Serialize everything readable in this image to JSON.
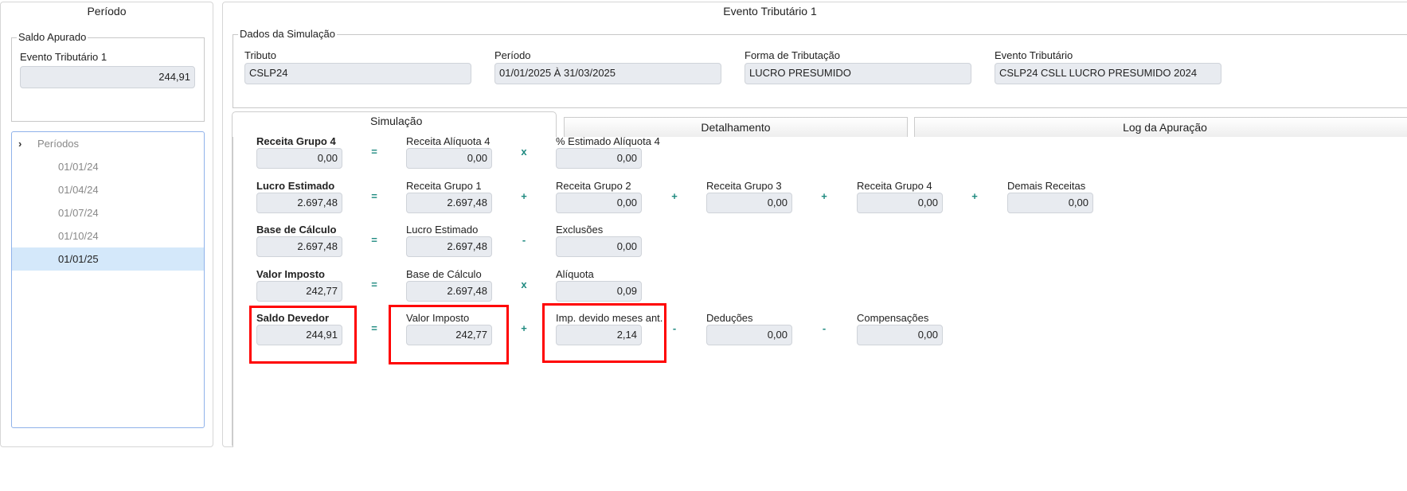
{
  "left": {
    "title": "Período",
    "saldo_legend": "Saldo Apurado",
    "evento_label": "Evento Tributário 1",
    "evento_value": "244,91",
    "tree": {
      "root": "Períodos",
      "items": [
        "01/01/24",
        "01/04/24",
        "01/07/24",
        "01/10/24",
        "01/01/25"
      ],
      "selected": 4
    }
  },
  "right": {
    "title": "Evento Tributário 1",
    "dados_legend": "Dados da Simulação",
    "fields": [
      {
        "label": "Tributo",
        "value": "CSLP24"
      },
      {
        "label": "Período",
        "value": "01/01/2025 À 31/03/2025"
      },
      {
        "label": "Forma de Tributação",
        "value": "LUCRO PRESUMIDO"
      },
      {
        "label": "Evento Tributário",
        "value": "CSLP24 CSLL LUCRO PRESUMIDO 2024"
      }
    ],
    "tabs": [
      {
        "label": "Simulação",
        "active": true
      },
      {
        "label": "Detalhamento"
      },
      {
        "label": "Log da Apuração"
      }
    ]
  },
  "simulation": {
    "rows": [
      {
        "items": [
          {
            "label": "Receita Grupo 4",
            "value": "0,00"
          },
          {
            "label": "Receita Alíquota 4",
            "value": "0,00"
          },
          {
            "label": "% Estimado Alíquota 4",
            "value": "0,00"
          }
        ],
        "ops": [
          "=",
          "x"
        ]
      },
      {
        "items": [
          {
            "label": "Lucro Estimado",
            "value": "2.697,48"
          },
          {
            "label": "Receita Grupo 1",
            "value": "2.697,48"
          },
          {
            "label": "Receita Grupo 2",
            "value": "0,00"
          },
          {
            "label": "Receita Grupo 3",
            "value": "0,00"
          },
          {
            "label": "Receita Grupo 4",
            "value": "0,00"
          },
          {
            "label": "Demais Receitas",
            "value": "0,00"
          }
        ],
        "ops": [
          "=",
          "+",
          "+",
          "+",
          "+"
        ]
      },
      {
        "items": [
          {
            "label": "Base de Cálculo",
            "value": "2.697,48"
          },
          {
            "label": "Lucro Estimado",
            "value": "2.697,48"
          },
          {
            "label": "Exclusões",
            "value": "0,00"
          }
        ],
        "ops": [
          "=",
          "-"
        ]
      },
      {
        "items": [
          {
            "label": "Valor Imposto",
            "value": "242,77"
          },
          {
            "label": "Base de Cálculo",
            "value": "2.697,48"
          },
          {
            "label": "Alíquota",
            "value": "0,09"
          }
        ],
        "ops": [
          "=",
          "x"
        ]
      },
      {
        "items": [
          {
            "label": "Saldo Devedor",
            "value": "244,91"
          },
          {
            "label": "Valor Imposto",
            "value": "242,77"
          },
          {
            "label": "Imp. devido meses ant.",
            "value": "2,14"
          },
          {
            "label": "Deduções",
            "value": "0,00"
          },
          {
            "label": "Compensações",
            "value": "0,00"
          }
        ],
        "ops": [
          "=",
          "+",
          "-",
          "-"
        ]
      }
    ],
    "highlight_color": "#ff0000",
    "operator_color": "#1f8a80"
  }
}
